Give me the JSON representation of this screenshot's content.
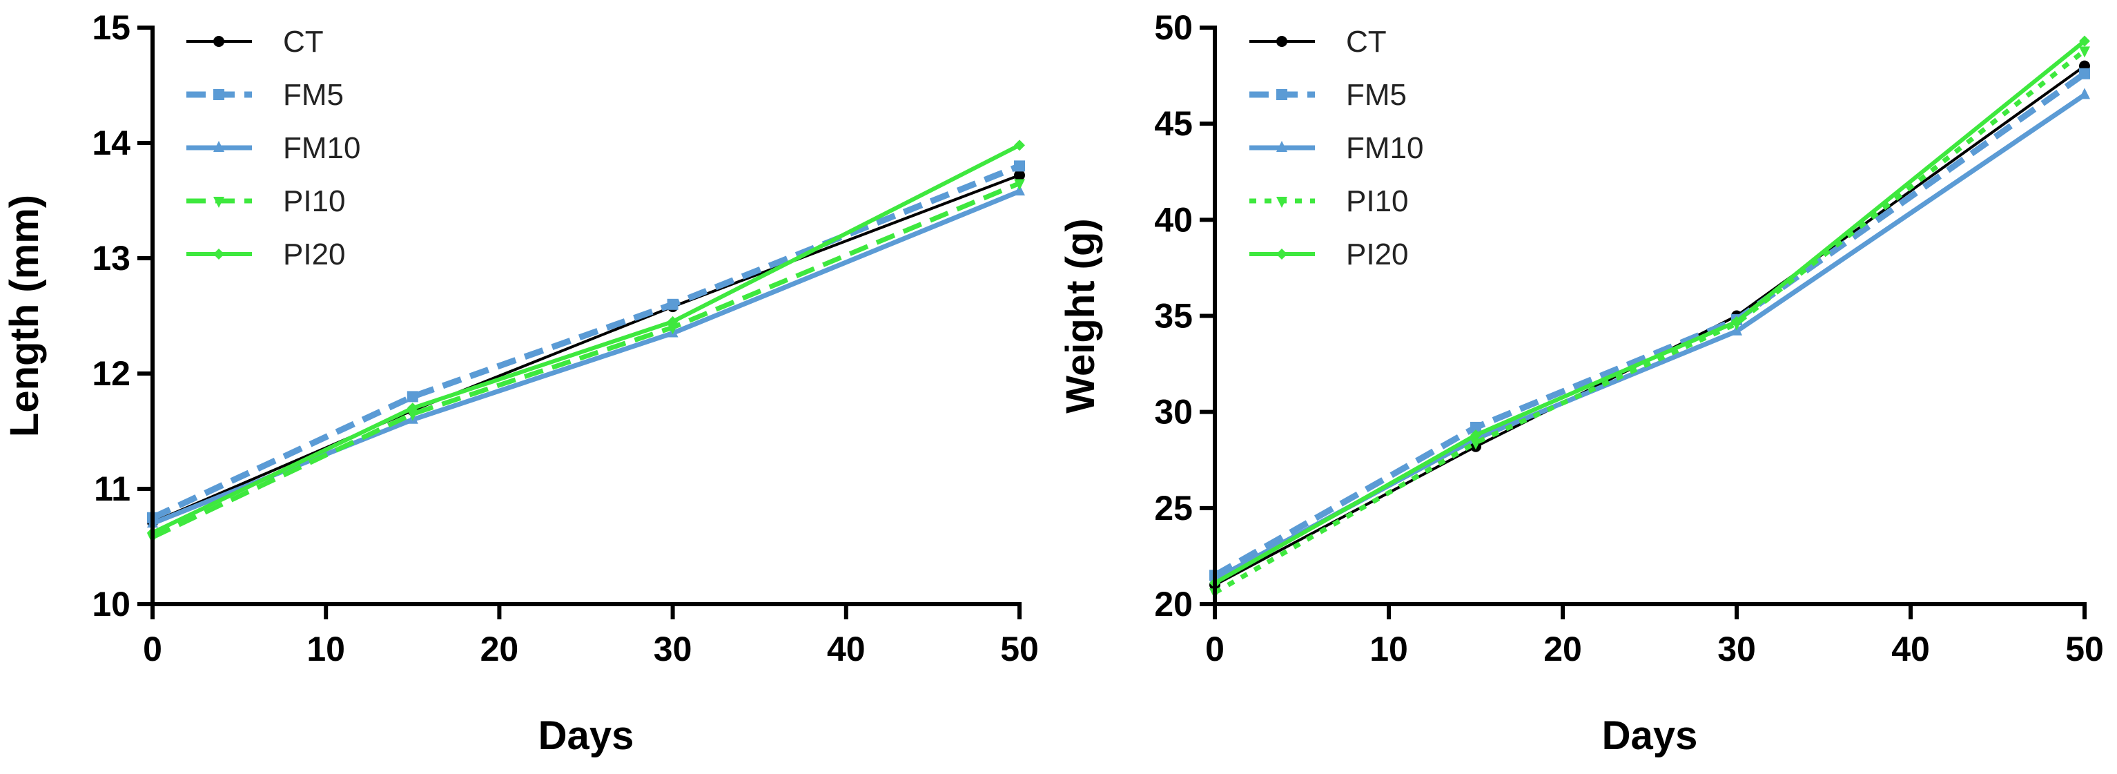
{
  "chart_data": [
    {
      "type": "line",
      "id": "length",
      "title": "",
      "xlabel": "Days",
      "ylabel": "Length (mm)",
      "xlim": [
        0,
        50
      ],
      "ylim": [
        10,
        15
      ],
      "xticks": [
        0,
        10,
        20,
        30,
        40,
        50
      ],
      "yticks": [
        10,
        11,
        12,
        13,
        14,
        15
      ],
      "x": [
        0,
        15,
        30,
        50
      ],
      "legend_position": "top-left",
      "series": [
        {
          "name": "CT",
          "values": [
            10.71,
            11.68,
            12.58,
            13.72
          ],
          "color": "#000000",
          "marker": "circle",
          "dash": "solid"
        },
        {
          "name": "FM5",
          "values": [
            10.75,
            11.8,
            12.6,
            13.8
          ],
          "color": "#5b9bd5",
          "marker": "square",
          "dash": "dashed"
        },
        {
          "name": "FM10",
          "values": [
            10.7,
            11.6,
            12.35,
            13.58
          ],
          "color": "#5b9bd5",
          "marker": "triangle-up",
          "dash": "solid"
        },
        {
          "name": "PI10",
          "values": [
            10.58,
            11.65,
            12.4,
            13.65
          ],
          "color": "#3ee83e",
          "marker": "triangle-down",
          "dash": "dashed"
        },
        {
          "name": "PI20",
          "values": [
            10.62,
            11.7,
            12.45,
            13.98
          ],
          "color": "#3ee83e",
          "marker": "diamond",
          "dash": "solid"
        }
      ]
    },
    {
      "type": "line",
      "id": "weight",
      "title": "",
      "xlabel": "Days",
      "ylabel": "Weight (g)",
      "xlim": [
        0,
        50
      ],
      "ylim": [
        20,
        50
      ],
      "xticks": [
        0,
        10,
        20,
        30,
        40,
        50
      ],
      "yticks": [
        20,
        25,
        30,
        35,
        40,
        45,
        50
      ],
      "x": [
        0,
        15,
        30,
        50
      ],
      "legend_position": "top-left",
      "series": [
        {
          "name": "CT",
          "values": [
            21.0,
            28.2,
            35.0,
            48.0
          ],
          "color": "#000000",
          "marker": "circle",
          "dash": "solid"
        },
        {
          "name": "FM5",
          "values": [
            21.5,
            29.2,
            34.8,
            47.6
          ],
          "color": "#5b9bd5",
          "marker": "square",
          "dash": "dashed"
        },
        {
          "name": "FM10",
          "values": [
            21.3,
            28.6,
            34.2,
            46.5
          ],
          "color": "#5b9bd5",
          "marker": "triangle-up",
          "dash": "solid"
        },
        {
          "name": "PI10",
          "values": [
            20.6,
            28.4,
            34.6,
            48.8
          ],
          "color": "#3ee83e",
          "marker": "triangle-down",
          "dash": "dotted"
        },
        {
          "name": "PI20",
          "values": [
            21.1,
            28.8,
            34.7,
            49.3
          ],
          "color": "#3ee83e",
          "marker": "diamond",
          "dash": "solid"
        }
      ]
    }
  ]
}
